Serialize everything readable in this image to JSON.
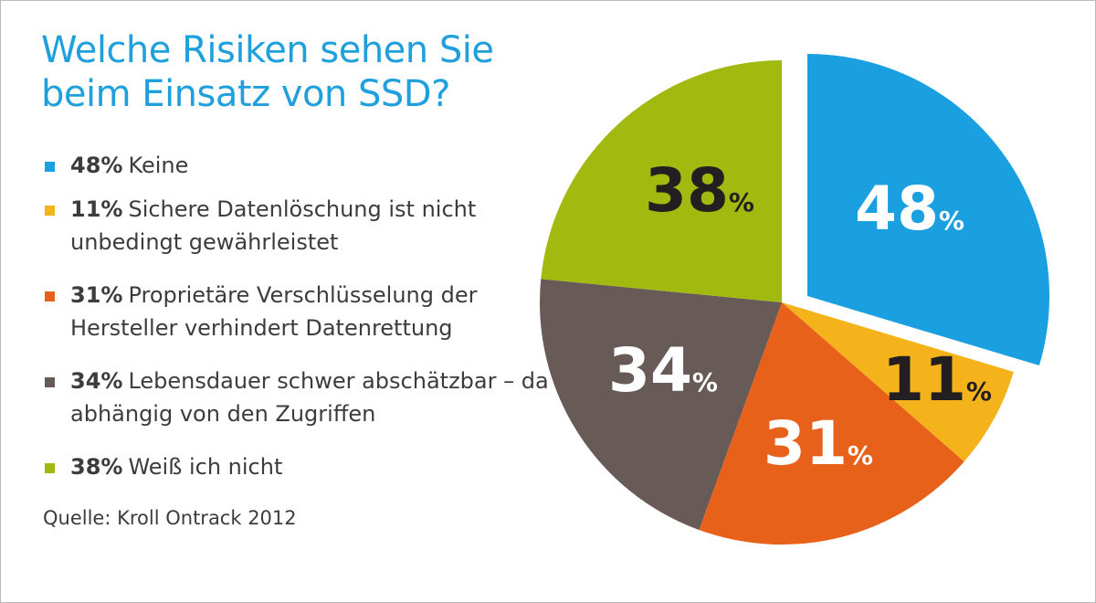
{
  "title": {
    "line1": "Welche Risiken sehen Sie",
    "line2": "beim Einsatz von SSD?"
  },
  "colors": {
    "title": "#1fa0dd",
    "text": "#3c3c3b",
    "frame": "#b9b9b9"
  },
  "legend": [
    {
      "pct": "48%",
      "text": "Keine",
      "color": "#1aa0e0"
    },
    {
      "pct": "11%",
      "text": "Sichere Datenlöschung ist nicht unbedingt gewährleistet",
      "color": "#f5b31b"
    },
    {
      "pct": "31%",
      "text": "Proprietäre Verschlüsselung der Hersteller verhindert Datenrettung",
      "color": "#e8611a"
    },
    {
      "pct": "34%",
      "text": "Lebensdauer schwer abschätzbar – da abhängig von den Zugriffen",
      "color": "#675a57"
    },
    {
      "pct": "38%",
      "text": "Weiß ich nicht",
      "color": "#a2b90f"
    }
  ],
  "source": "Quelle: Kroll Ontrack 2012",
  "chart_data": {
    "type": "pie",
    "title": "Welche Risiken sehen Sie beim Einsatz von SSD?",
    "slices": [
      {
        "label": "Keine",
        "value": 48,
        "display": "48",
        "unit": "%",
        "color": "#1aa0e0",
        "label_color": "#ffffff",
        "exploded": true
      },
      {
        "label": "Sichere Datenlöschung ist nicht unbedingt gewährleistet",
        "value": 11,
        "display": "11",
        "unit": "%",
        "color": "#f5b31b",
        "label_color": "#231f20",
        "exploded": false
      },
      {
        "label": "Proprietäre Verschlüsselung der Hersteller verhindert Datenrettung",
        "value": 31,
        "display": "31",
        "unit": "%",
        "color": "#e8611a",
        "label_color": "#ffffff",
        "exploded": false
      },
      {
        "label": "Lebensdauer schwer abschätzbar – da abhängig von den Zugriffen",
        "value": 34,
        "display": "34",
        "unit": "%",
        "color": "#675a57",
        "label_color": "#ffffff",
        "exploded": false
      },
      {
        "label": "Weiß ich nicht",
        "value": 38,
        "display": "38",
        "unit": "%",
        "color": "#a2b90f",
        "label_color": "#231f20",
        "exploded": false
      }
    ]
  }
}
